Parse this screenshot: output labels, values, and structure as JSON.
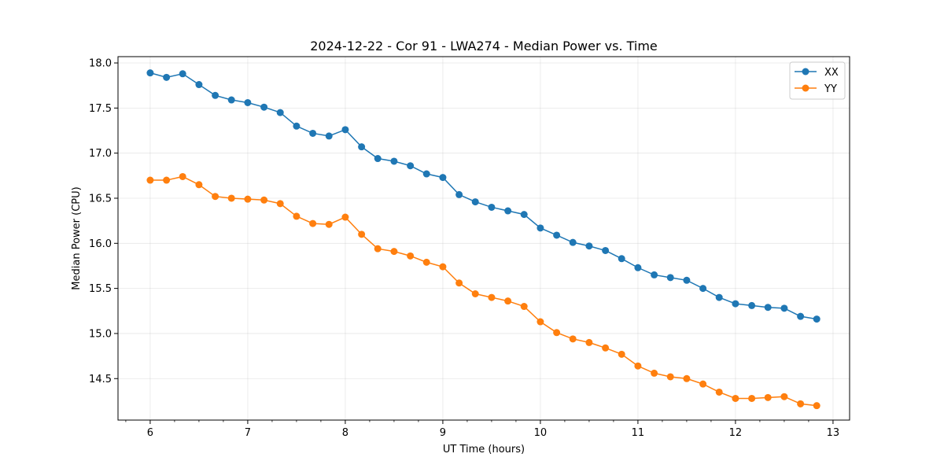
{
  "chart_data": {
    "type": "line",
    "title": "2024-12-22 - Cor 91 - LWA274 - Median Power vs. Time",
    "xlabel": "UT Time (hours)",
    "ylabel": "Median Power (CPU)",
    "xlim": [
      5.67,
      13.17
    ],
    "ylim": [
      14.04,
      18.07
    ],
    "xticks": [
      6,
      7,
      8,
      9,
      10,
      11,
      12,
      13
    ],
    "xtick_labels": [
      "6",
      "7",
      "8",
      "9",
      "10",
      "11",
      "12",
      "13"
    ],
    "yticks": [
      14.5,
      15.0,
      15.5,
      16.0,
      16.5,
      17.0,
      17.5,
      18.0
    ],
    "ytick_labels": [
      "14.5",
      "15.0",
      "15.5",
      "16.0",
      "16.5",
      "17.0",
      "17.5",
      "18.0"
    ],
    "grid": true,
    "legend_position": "top-right",
    "x": [
      6.0,
      6.167,
      6.333,
      6.5,
      6.667,
      6.833,
      7.0,
      7.167,
      7.333,
      7.5,
      7.667,
      7.833,
      8.0,
      8.167,
      8.333,
      8.5,
      8.667,
      8.833,
      9.0,
      9.167,
      9.333,
      9.5,
      9.667,
      9.833,
      10.0,
      10.167,
      10.333,
      10.5,
      10.667,
      10.833,
      11.0,
      11.167,
      11.333,
      11.5,
      11.667,
      11.833,
      12.0,
      12.167,
      12.333,
      12.5,
      12.667,
      12.833
    ],
    "series": [
      {
        "name": "XX",
        "color": "#1f77b4",
        "values": [
          17.89,
          17.84,
          17.88,
          17.76,
          17.64,
          17.59,
          17.56,
          17.51,
          17.45,
          17.3,
          17.22,
          17.19,
          17.26,
          17.07,
          16.94,
          16.91,
          16.86,
          16.77,
          16.73,
          16.54,
          16.46,
          16.4,
          16.36,
          16.32,
          16.17,
          16.09,
          16.01,
          15.97,
          15.92,
          15.83,
          15.73,
          15.65,
          15.62,
          15.59,
          15.5,
          15.4,
          15.33,
          15.31,
          15.29,
          15.28,
          15.19,
          15.16
        ]
      },
      {
        "name": "YY",
        "color": "#ff7f0e",
        "values": [
          16.7,
          16.7,
          16.74,
          16.65,
          16.52,
          16.5,
          16.49,
          16.48,
          16.44,
          16.3,
          16.22,
          16.21,
          16.29,
          16.1,
          15.94,
          15.91,
          15.86,
          15.79,
          15.74,
          15.56,
          15.44,
          15.4,
          15.36,
          15.3,
          15.13,
          15.01,
          14.94,
          14.9,
          14.84,
          14.77,
          14.64,
          14.56,
          14.52,
          14.5,
          14.44,
          14.35,
          14.28,
          14.28,
          14.29,
          14.3,
          14.22,
          14.2
        ]
      }
    ]
  }
}
